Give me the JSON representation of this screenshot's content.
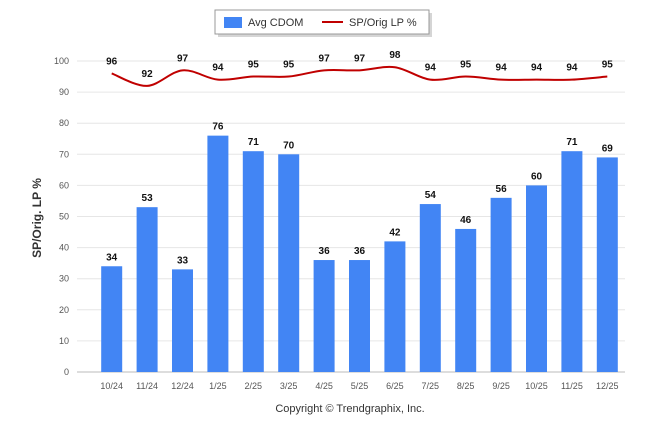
{
  "chart_data": {
    "type": "bar",
    "categories": [
      "10/24",
      "11/24",
      "12/24",
      "1/25",
      "2/25",
      "3/25",
      "4/25",
      "5/25",
      "6/25",
      "7/25",
      "8/25",
      "9/25",
      "10/25",
      "11/25",
      "12/25"
    ],
    "series": [
      {
        "name": "Avg CDOM",
        "type": "bar",
        "color": "#4285f4",
        "values": [
          34,
          53,
          33,
          76,
          71,
          70,
          36,
          36,
          42,
          54,
          46,
          56,
          60,
          71,
          69
        ]
      },
      {
        "name": "SP/Orig LP %",
        "type": "line",
        "color": "#c00000",
        "values": [
          96,
          92,
          97,
          94,
          95,
          95,
          97,
          97,
          98,
          94,
          95,
          94,
          94,
          94,
          95
        ]
      }
    ],
    "ylabel": "SP/Orig. LP %",
    "ylim": [
      0,
      100
    ],
    "yticks": [
      0,
      10,
      20,
      30,
      40,
      50,
      60,
      70,
      80,
      90,
      100
    ],
    "grid": true,
    "legend_placement": "top-center"
  },
  "footer": {
    "copyright": "Copyright © Trendgraphix, Inc."
  }
}
